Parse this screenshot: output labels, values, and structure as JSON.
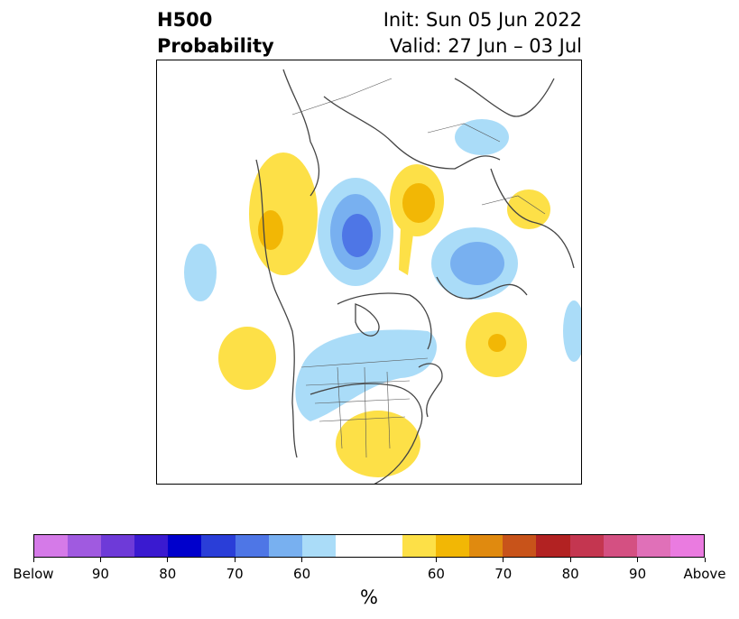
{
  "title": {
    "left_line1": "H500",
    "left_line2": "Probability",
    "right_line1": "Init: Sun 05 Jun 2022",
    "right_line2": "Valid: 27 Jun – 03 Jul"
  },
  "colorbar": {
    "unit": "%",
    "colors": [
      "#d57ae8",
      "#a05ae0",
      "#6e3ad8",
      "#3a1ad0",
      "#0000cc",
      "#2a3ed8",
      "#4e76e6",
      "#78b0f0",
      "#aadcf8",
      "#ffffff",
      "#ffffff",
      "#fde047",
      "#f2b705",
      "#e08a0f",
      "#c8531a",
      "#b22222",
      "#c43650",
      "#d45082",
      "#e070b8",
      "#ea7be0"
    ],
    "tick_labels": [
      "Below",
      "90",
      "80",
      "70",
      "60",
      "60",
      "70",
      "80",
      "90",
      "Above"
    ]
  },
  "map": {
    "legend_meaning": {
      "blue": "below",
      "yellow": "above"
    }
  }
}
